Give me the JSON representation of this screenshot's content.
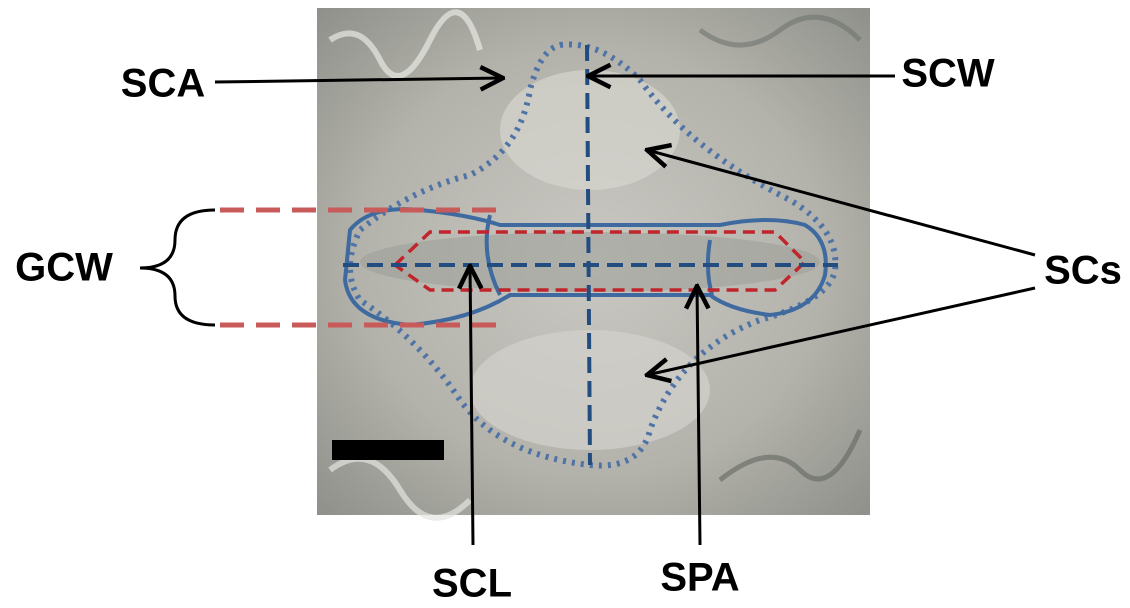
{
  "labels": [
    "SCA",
    "SCW",
    "GCW",
    "SCs",
    "SCL",
    "SPA"
  ]
}
